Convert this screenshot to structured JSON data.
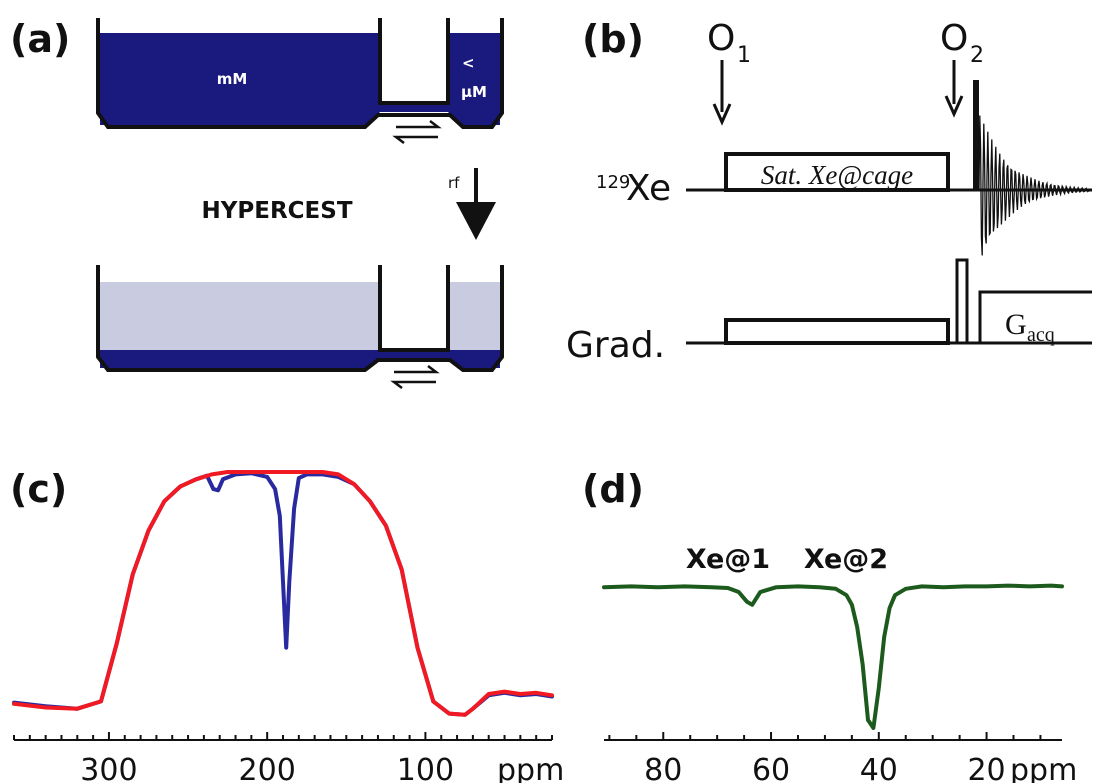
{
  "colors": {
    "dark_blue": "#19197e",
    "light_blue": "#c9cbe0",
    "red_trace": "#f11a23",
    "blue_trace": "#2a2aa0",
    "green_trace": "#1d5a1d",
    "black": "#111111"
  },
  "panel_a": {
    "label": "(a)",
    "top_left_text": "mM",
    "top_right_text_line1": "<",
    "top_right_text_line2": "µM",
    "rf_label": "rf",
    "hypercest_label": "HYPERCEST",
    "icons": [
      "double-arrow-exchange-icon",
      "rf-arrow-icon"
    ]
  },
  "panel_b": {
    "label": "(b)",
    "o1_label": "O",
    "o1_sub": "1",
    "o2_label": "O",
    "o2_sub": "2",
    "xe_sup": "129",
    "xe_label": "Xe",
    "sat_label": "Sat. Xe@cage",
    "grad_label": "Grad.",
    "gacq_label": "G",
    "gacq_sub": "acq"
  },
  "panel_c": {
    "label": "(c)",
    "chart_data": {
      "type": "line",
      "xlabel": "ppm",
      "x_ticks": [
        "300",
        "200",
        "100"
      ],
      "x_tick_values": [
        300,
        200,
        100
      ],
      "xlim": [
        360,
        20
      ],
      "ylim": [
        0,
        1
      ],
      "x_reversed": true,
      "series": [
        {
          "color": "#2a2aa0",
          "x": [
            360,
            340,
            320,
            305,
            295,
            285,
            275,
            265,
            255,
            245,
            238,
            234,
            231,
            228,
            220,
            210,
            200,
            195,
            192,
            190,
            188,
            186,
            183,
            180,
            175,
            165,
            155,
            145,
            135,
            125,
            115,
            105,
            95,
            85,
            75,
            70,
            60,
            50,
            40,
            30,
            20
          ],
          "y": [
            0.055,
            0.04,
            0.03,
            0.06,
            0.3,
            0.58,
            0.76,
            0.88,
            0.94,
            0.97,
            0.985,
            0.93,
            0.925,
            0.97,
            0.99,
            0.995,
            0.98,
            0.93,
            0.82,
            0.55,
            0.28,
            0.55,
            0.85,
            0.975,
            0.99,
            0.99,
            0.98,
            0.95,
            0.88,
            0.78,
            0.6,
            0.28,
            0.06,
            0.01,
            0.005,
            0.03,
            0.085,
            0.095,
            0.085,
            0.09,
            0.08
          ]
        },
        {
          "color": "#f11a23",
          "x": [
            360,
            340,
            320,
            305,
            295,
            285,
            275,
            265,
            255,
            245,
            235,
            225,
            210,
            195,
            180,
            165,
            155,
            145,
            135,
            125,
            115,
            105,
            95,
            85,
            75,
            70,
            60,
            50,
            40,
            30,
            20
          ],
          "y": [
            0.05,
            0.035,
            0.03,
            0.06,
            0.3,
            0.58,
            0.76,
            0.88,
            0.94,
            0.97,
            0.99,
            1.0,
            1.0,
            1.0,
            1.0,
            1.0,
            0.99,
            0.95,
            0.88,
            0.78,
            0.6,
            0.28,
            0.06,
            0.01,
            0.005,
            0.03,
            0.09,
            0.1,
            0.09,
            0.095,
            0.085
          ]
        }
      ]
    }
  },
  "panel_d": {
    "label": "(d)",
    "peak1_label": "Xe@1",
    "peak2_label": "Xe@2",
    "chart_data": {
      "type": "line",
      "xlabel": "ppm",
      "x_ticks": [
        "80",
        "60",
        "40",
        "20"
      ],
      "x_tick_values": [
        80,
        60,
        40,
        20
      ],
      "xlim": [
        91,
        6
      ],
      "ylim": [
        0,
        1
      ],
      "x_reversed": true,
      "series": [
        {
          "color": "#1d5a1d",
          "x": [
            91,
            86,
            81,
            76,
            71,
            68,
            66,
            64.5,
            63.5,
            62,
            59,
            55,
            51,
            48,
            46,
            45,
            44,
            43,
            42,
            41,
            40,
            39,
            38,
            37,
            35,
            32,
            28,
            24,
            20,
            16,
            12,
            8,
            6
          ],
          "y": [
            0.93,
            0.935,
            0.93,
            0.935,
            0.93,
            0.925,
            0.9,
            0.84,
            0.82,
            0.9,
            0.93,
            0.935,
            0.93,
            0.92,
            0.88,
            0.82,
            0.68,
            0.45,
            0.1,
            0.05,
            0.3,
            0.62,
            0.8,
            0.88,
            0.92,
            0.935,
            0.93,
            0.935,
            0.935,
            0.94,
            0.935,
            0.94,
            0.935
          ]
        }
      ]
    }
  }
}
